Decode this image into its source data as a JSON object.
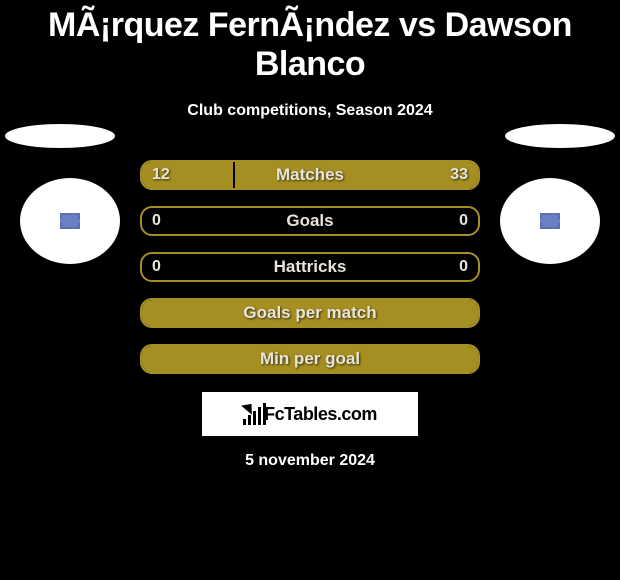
{
  "title": "MÃ¡rquez FernÃ¡ndez vs Dawson Blanco",
  "subtitle": "Club competitions, Season 2024",
  "bar_bg": "#000000",
  "bar_border": "#a58f23",
  "bar_fill": "#a58f23",
  "text_color": "#e8e4d9",
  "rows": [
    {
      "label": "Matches",
      "left": "12",
      "right": "33",
      "left_pct": 27,
      "right_pct": 73,
      "show_values": true
    },
    {
      "label": "Goals",
      "left": "0",
      "right": "0",
      "left_pct": 0,
      "right_pct": 0,
      "show_values": true
    },
    {
      "label": "Hattricks",
      "left": "0",
      "right": "0",
      "left_pct": 0,
      "right_pct": 0,
      "show_values": true
    },
    {
      "label": "Goals per match",
      "left": "",
      "right": "",
      "left_pct": 100,
      "right_pct": 0,
      "show_values": false
    },
    {
      "label": "Min per goal",
      "left": "",
      "right": "",
      "left_pct": 100,
      "right_pct": 0,
      "show_values": false
    }
  ],
  "brand": "FcTables.com",
  "brand_bar_heights": [
    6,
    10,
    14,
    18,
    22
  ],
  "date": "5 november 2024"
}
